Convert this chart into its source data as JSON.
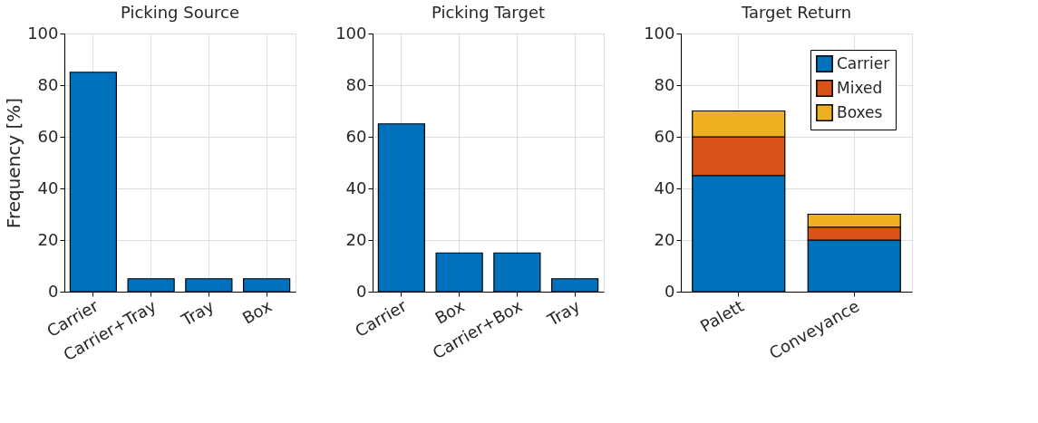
{
  "chart_data": [
    {
      "type": "bar",
      "title": "Picking Source",
      "ylabel": "Frequency [%]",
      "categories": [
        "Carrier",
        "Carrier+Tray",
        "Tray",
        "Box"
      ],
      "values": [
        85,
        5,
        5,
        5
      ],
      "color": "#0072bd",
      "ylim": [
        0,
        100
      ],
      "yticks": [
        0,
        20,
        40,
        60,
        80,
        100
      ],
      "grid": true
    },
    {
      "type": "bar",
      "title": "Picking Target",
      "categories": [
        "Carrier",
        "Box",
        "Carrier+Box",
        "Tray"
      ],
      "values": [
        65,
        15,
        15,
        5
      ],
      "color": "#0072bd",
      "ylim": [
        0,
        100
      ],
      "yticks": [
        0,
        20,
        40,
        60,
        80,
        100
      ],
      "grid": true
    },
    {
      "type": "bar",
      "title": "Target Return",
      "categories": [
        "Palett",
        "Conveyance"
      ],
      "stacked": true,
      "legend": "top right",
      "series": [
        {
          "name": "Carrier",
          "color": "#0072bd",
          "values": [
            45,
            20
          ]
        },
        {
          "name": "Mixed",
          "color": "#d95319",
          "values": [
            15,
            5
          ]
        },
        {
          "name": "Boxes",
          "color": "#edb120",
          "values": [
            10,
            5
          ]
        }
      ],
      "ylim": [
        0,
        100
      ],
      "yticks": [
        0,
        20,
        40,
        60,
        80,
        100
      ],
      "grid": true
    }
  ]
}
